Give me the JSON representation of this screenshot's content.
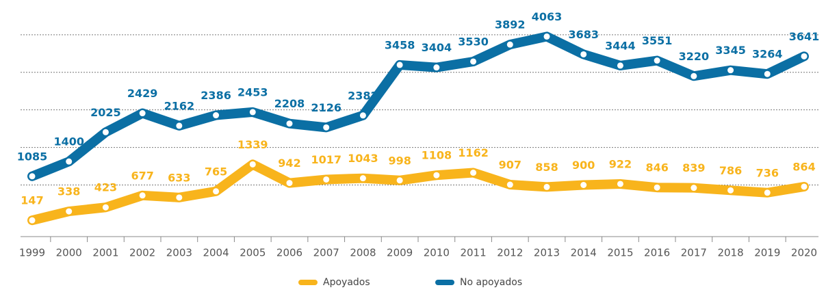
{
  "chart_data": {
    "type": "line",
    "categories": [
      "1999",
      "2000",
      "2001",
      "2002",
      "2003",
      "2004",
      "2005",
      "2006",
      "2007",
      "2008",
      "2009",
      "2010",
      "2011",
      "2012",
      "2013",
      "2014",
      "2015",
      "2016",
      "2017",
      "2018",
      "2019",
      "2020"
    ],
    "series": [
      {
        "name": "Apoyados",
        "color": "#f8b41c",
        "values": [
          147,
          338,
          423,
          677,
          633,
          765,
          1339,
          942,
          1017,
          1043,
          998,
          1108,
          1162,
          907,
          858,
          900,
          922,
          846,
          839,
          786,
          736,
          864
        ]
      },
      {
        "name": "No apoyados",
        "color": "#0b6fa4",
        "values": [
          1085,
          1400,
          2025,
          2429,
          2162,
          2386,
          2453,
          2208,
          2126,
          2382,
          3458,
          3404,
          3530,
          3892,
          4063,
          3683,
          3444,
          3551,
          3220,
          3345,
          3264,
          3641
        ]
      }
    ],
    "ylim": [
      -200,
      4200
    ],
    "yticks": [
      900,
      1700,
      2500,
      3300,
      4100
    ],
    "grid": true,
    "legend": "bottom"
  }
}
